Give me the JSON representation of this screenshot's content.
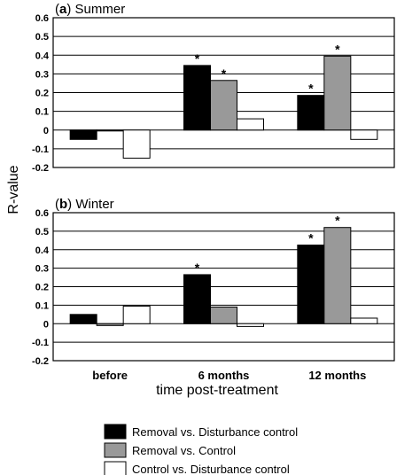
{
  "chart_data": {
    "type": "bar",
    "ylabel": "R-value",
    "xlabel": "time post-treatment",
    "categories": [
      "before",
      "6 months",
      "12 months"
    ],
    "series_names": [
      "Removal vs. Disturbance control",
      "Removal vs. Control",
      "Control vs. Disturbance control"
    ],
    "colors": [
      "#000000",
      "#999999",
      "#ffffff"
    ],
    "ylim": [
      -0.2,
      0.6
    ],
    "yticks": [
      "-0.2",
      "-0.1",
      "0",
      "0.1",
      "0.2",
      "0.3",
      "0.4",
      "0.5",
      "0.6"
    ],
    "grid": true,
    "legend_position": "bottom",
    "significance_marker": "*",
    "panels": [
      {
        "letter": "a",
        "title": "Summer",
        "series": [
          {
            "values": [
              -0.05,
              0.345,
              0.185
            ],
            "significant": [
              false,
              true,
              true
            ]
          },
          {
            "values": [
              -0.005,
              0.265,
              0.395
            ],
            "significant": [
              false,
              true,
              true
            ]
          },
          {
            "values": [
              -0.15,
              0.06,
              -0.05
            ],
            "significant": [
              false,
              false,
              false
            ]
          }
        ]
      },
      {
        "letter": "b",
        "title": "Winter",
        "series": [
          {
            "values": [
              0.05,
              0.265,
              0.425
            ],
            "significant": [
              false,
              true,
              true
            ]
          },
          {
            "values": [
              -0.01,
              0.09,
              0.52
            ],
            "significant": [
              false,
              false,
              true
            ]
          },
          {
            "values": [
              0.095,
              -0.015,
              0.03
            ],
            "significant": [
              false,
              false,
              false
            ]
          }
        ]
      }
    ]
  }
}
